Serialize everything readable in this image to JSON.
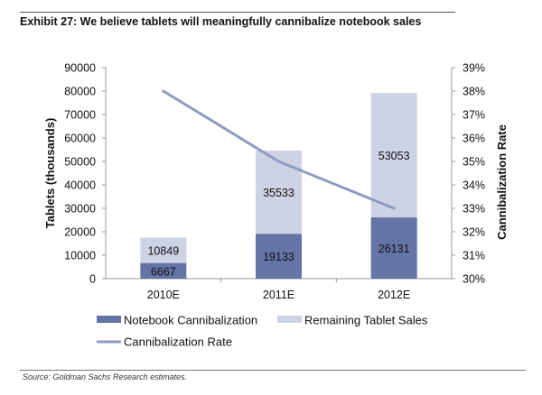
{
  "exhibit": {
    "title": "Exhibit 27: We believe tablets will meaningfully cannibalize notebook sales",
    "source": "Source: Goldman Sachs Research estimates."
  },
  "chart_data": {
    "type": "bar",
    "stacked": true,
    "title": "Exhibit 27: We believe tablets will meaningfully cannibalize notebook sales",
    "categories": [
      "2010E",
      "2011E",
      "2012E"
    ],
    "series": [
      {
        "name": "Notebook Cannibalization",
        "axis": "left",
        "kind": "bar",
        "color": "#6474a6",
        "values": [
          6667,
          19133,
          26131
        ],
        "labels": [
          "6667",
          "19133",
          "26131"
        ]
      },
      {
        "name": "Remaining Tablet Sales",
        "axis": "left",
        "kind": "bar",
        "color": "#cdd3e4",
        "values": [
          10849,
          35533,
          53053
        ],
        "labels": [
          "10849",
          "35533",
          "53053"
        ]
      },
      {
        "name": "Cannibalization Rate",
        "axis": "right",
        "kind": "line",
        "color": "#8e9bc2",
        "values": [
          0.38,
          0.35,
          0.33
        ]
      }
    ],
    "ylabel": "Tablets (thousands)",
    "ylim": [
      0,
      90000
    ],
    "yticks": [
      "0",
      "10000",
      "20000",
      "30000",
      "40000",
      "50000",
      "60000",
      "70000",
      "80000",
      "90000"
    ],
    "y2label": "Cannibalization Rate",
    "y2lim": [
      0.3,
      0.39
    ],
    "y2ticks": [
      "30%",
      "31%",
      "32%",
      "33%",
      "34%",
      "35%",
      "36%",
      "37%",
      "38%",
      "39%"
    ],
    "xlabel": "",
    "grid": false,
    "legend": {
      "position": "bottom",
      "items": [
        "Notebook Cannibalization",
        "Remaining Tablet Sales",
        "Cannibalization Rate"
      ]
    }
  }
}
